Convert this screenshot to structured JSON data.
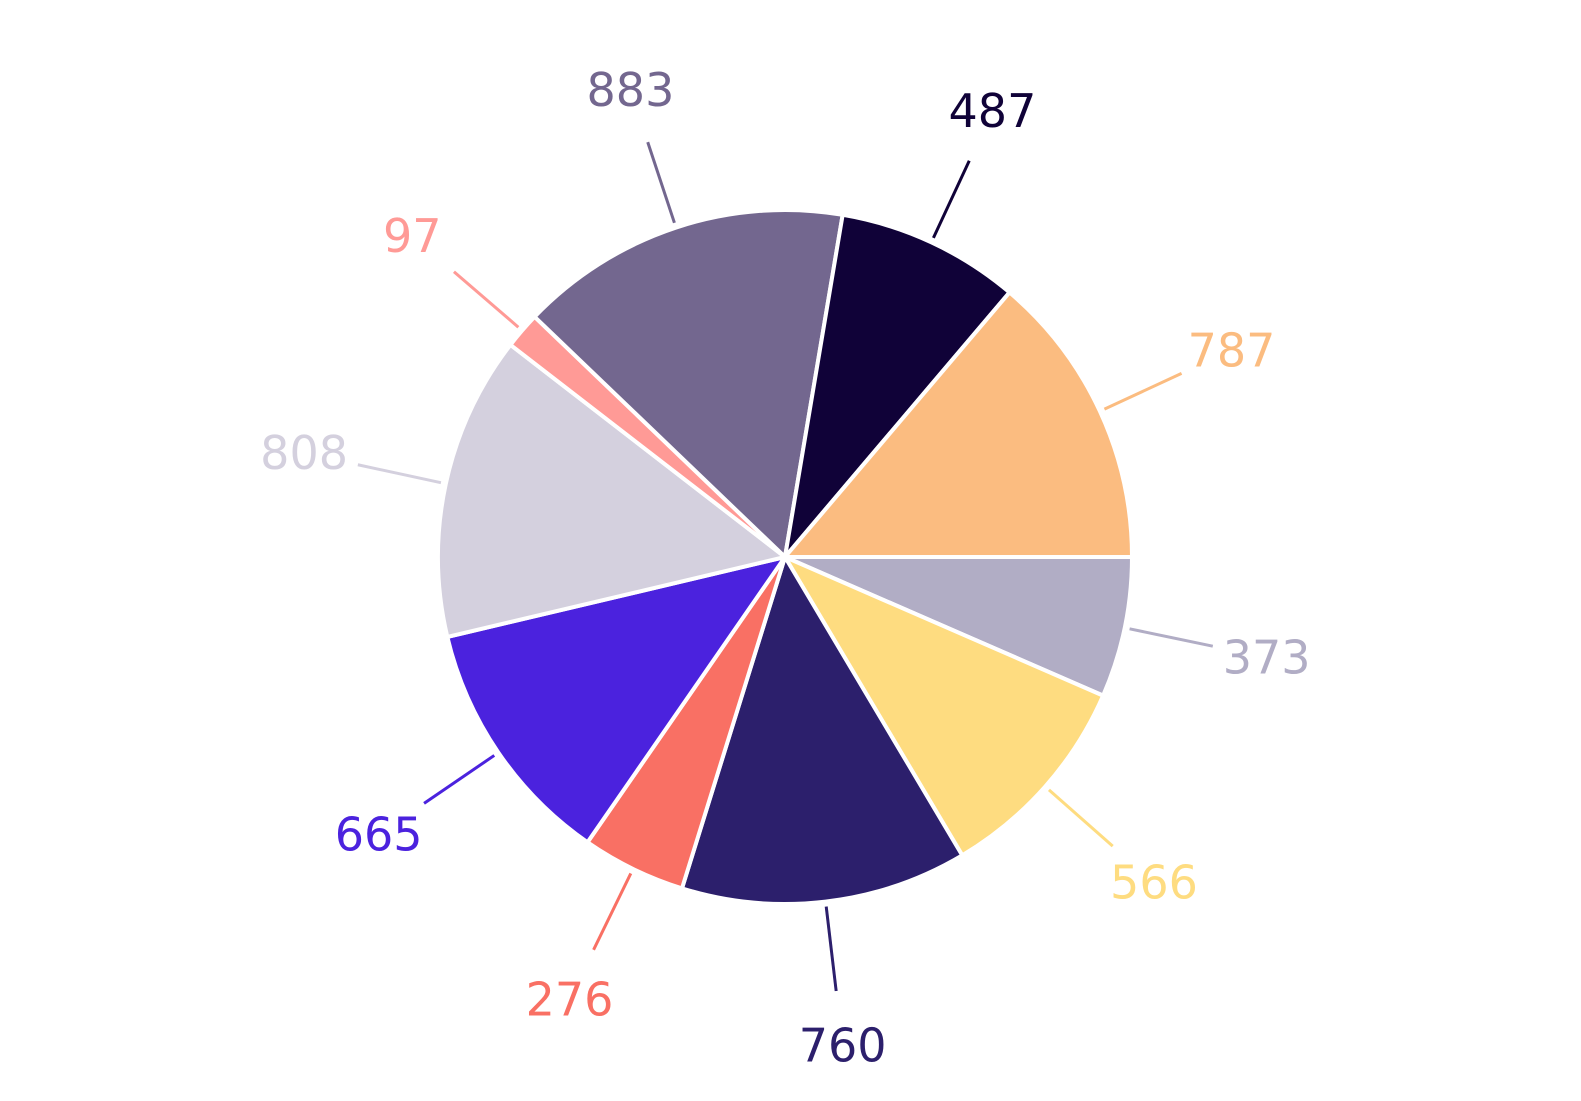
{
  "chart_data": {
    "type": "pie",
    "title": "",
    "start_angle_deg": 0,
    "direction": "clockwise",
    "slices": [
      {
        "value": 373,
        "label": "373",
        "color": "#b1adc5"
      },
      {
        "value": 566,
        "label": "566",
        "color": "#fedc80"
      },
      {
        "value": 760,
        "label": "760",
        "color": "#2c1f6c"
      },
      {
        "value": 276,
        "label": "276",
        "color": "#f97064"
      },
      {
        "value": 665,
        "label": "665",
        "color": "#4b22de"
      },
      {
        "value": 808,
        "label": "808",
        "color": "#d4d0de"
      },
      {
        "value": 97,
        "label": "97",
        "color": "#ff9a96"
      },
      {
        "value": 883,
        "label": "883",
        "color": "#73678f"
      },
      {
        "value": 487,
        "label": "487",
        "color": "#100238"
      },
      {
        "value": 787,
        "label": "787",
        "color": "#fbbc80"
      }
    ]
  }
}
